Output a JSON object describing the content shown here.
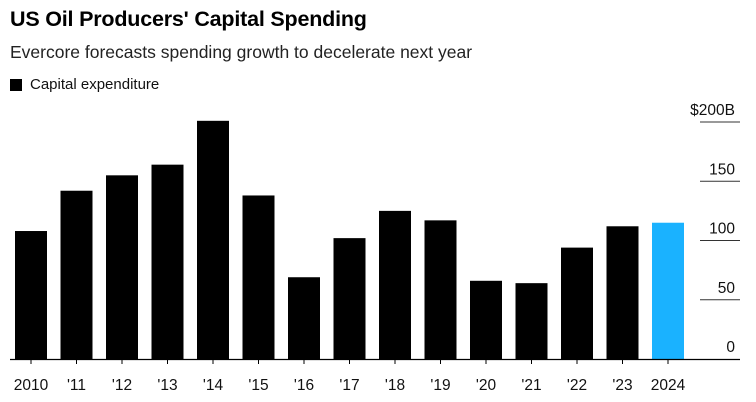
{
  "chart_data": {
    "type": "bar",
    "title": "US Oil Producers' Capital Spending",
    "subtitle": "Evercore forecasts spending growth to decelerate next year",
    "legend": [
      {
        "label": "Capital expenditure",
        "color": "#000000"
      }
    ],
    "categories": [
      "2010",
      "'11",
      "'12",
      "'13",
      "'14",
      "'15",
      "'16",
      "'17",
      "'18",
      "'19",
      "'20",
      "'21",
      "'22",
      "'23",
      "2024"
    ],
    "series": [
      {
        "name": "Capital expenditure",
        "values": [
          108,
          142,
          155,
          164,
          201,
          138,
          69,
          102,
          125,
          117,
          66,
          64,
          94,
          112,
          115
        ],
        "colors": [
          "#000000",
          "#000000",
          "#000000",
          "#000000",
          "#000000",
          "#000000",
          "#000000",
          "#000000",
          "#000000",
          "#000000",
          "#000000",
          "#000000",
          "#000000",
          "#000000",
          "#1ab2ff"
        ]
      }
    ],
    "yaxis": {
      "position": "right",
      "ticks": [
        0,
        50,
        100,
        150,
        200
      ],
      "tick_labels": [
        "0",
        "50",
        "100",
        "150",
        "$200B"
      ],
      "ylim": [
        0,
        200
      ]
    },
    "xlabel": "",
    "ylabel": ""
  }
}
